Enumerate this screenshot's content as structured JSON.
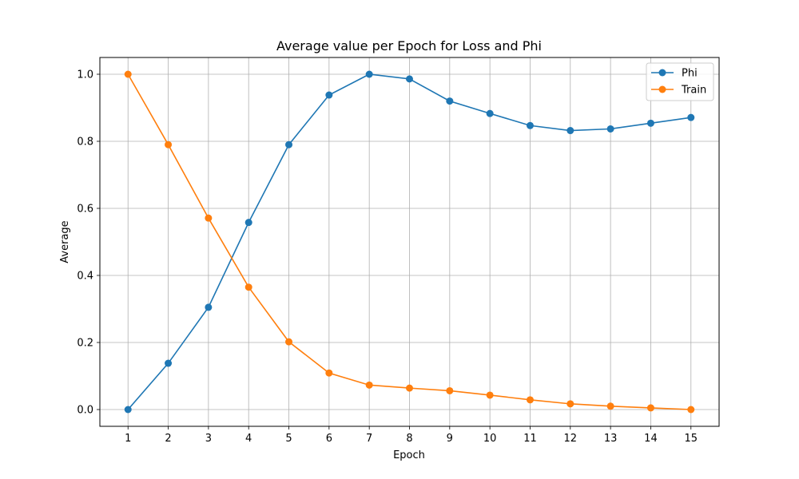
{
  "chart_data": {
    "type": "line",
    "title": "Average value per Epoch for Loss and Phi",
    "xlabel": "Epoch",
    "ylabel": "Average",
    "x": [
      1,
      2,
      3,
      4,
      5,
      6,
      7,
      8,
      9,
      10,
      11,
      12,
      13,
      14,
      15
    ],
    "xlim": [
      0.3,
      15.7
    ],
    "ylim": [
      -0.05,
      1.05
    ],
    "yticks": [
      "0.0",
      "0.2",
      "0.4",
      "0.6",
      "0.8",
      "1.0"
    ],
    "grid": true,
    "legend_position": "top-right",
    "series": [
      {
        "name": "Phi",
        "color": "#1f77b4",
        "values": [
          0.0,
          0.138,
          0.305,
          0.558,
          0.79,
          0.938,
          1.0,
          0.986,
          0.92,
          0.883,
          0.847,
          0.832,
          0.837,
          0.854,
          0.871
        ]
      },
      {
        "name": "Train",
        "color": "#ff7f0e",
        "values": [
          1.0,
          0.79,
          0.571,
          0.365,
          0.202,
          0.109,
          0.073,
          0.064,
          0.056,
          0.043,
          0.029,
          0.017,
          0.01,
          0.005,
          0.0
        ]
      }
    ]
  }
}
